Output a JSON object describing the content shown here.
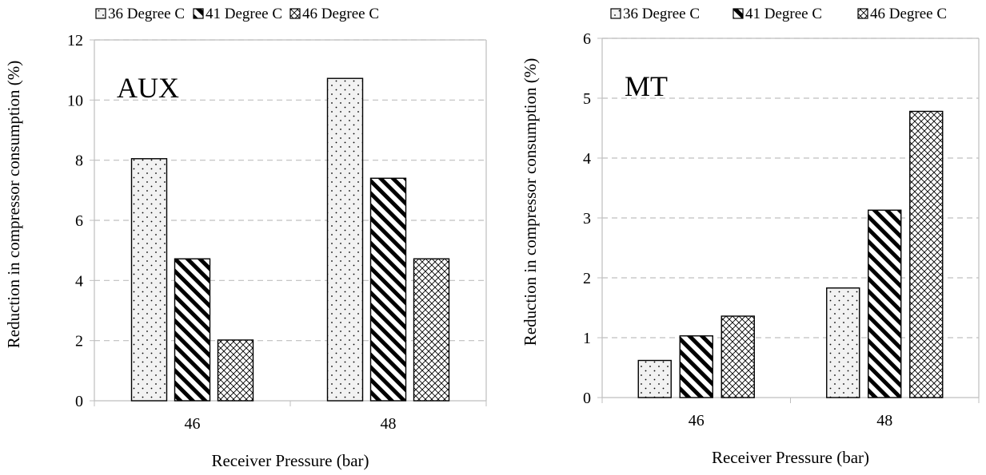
{
  "chart_data": [
    {
      "type": "bar",
      "panel_label": "AUX",
      "categories": [
        "46",
        "48"
      ],
      "series": [
        {
          "name": "36 Degree C",
          "values": [
            8.05,
            10.72
          ],
          "pattern": "dots"
        },
        {
          "name": "41 Degree C",
          "values": [
            4.72,
            7.4
          ],
          "pattern": "diagonal"
        },
        {
          "name": "46 Degree C",
          "values": [
            2.02,
            4.72
          ],
          "pattern": "crosshatch"
        }
      ],
      "xlabel": "Receiver Pressure (bar)",
      "ylabel": "Reduction in compressor consumption (%)",
      "ylim": [
        0,
        12
      ],
      "yticks": [
        "0",
        "2",
        "4",
        "6",
        "8",
        "10",
        "12"
      ],
      "grid": true,
      "legend_position": "top"
    },
    {
      "type": "bar",
      "panel_label": "MT",
      "categories": [
        "46",
        "48"
      ],
      "series": [
        {
          "name": "36 Degree C",
          "values": [
            0.62,
            1.83
          ],
          "pattern": "dots"
        },
        {
          "name": "41 Degree C",
          "values": [
            1.03,
            3.13
          ],
          "pattern": "diagonal"
        },
        {
          "name": "46 Degree C",
          "values": [
            1.36,
            4.78
          ],
          "pattern": "crosshatch"
        }
      ],
      "xlabel": "Receiver Pressure (bar)",
      "ylabel": "Reduction in compressor consumption (%)",
      "ylim": [
        0,
        6
      ],
      "yticks": [
        "0",
        "1",
        "2",
        "3",
        "4",
        "5",
        "6"
      ],
      "grid": true,
      "legend_position": "top"
    }
  ],
  "colors": {
    "bar_outline": "#000000",
    "dot_fill": "#f2f2f2",
    "grid": "#bfbfbf",
    "axis": "#bfbfbf"
  }
}
